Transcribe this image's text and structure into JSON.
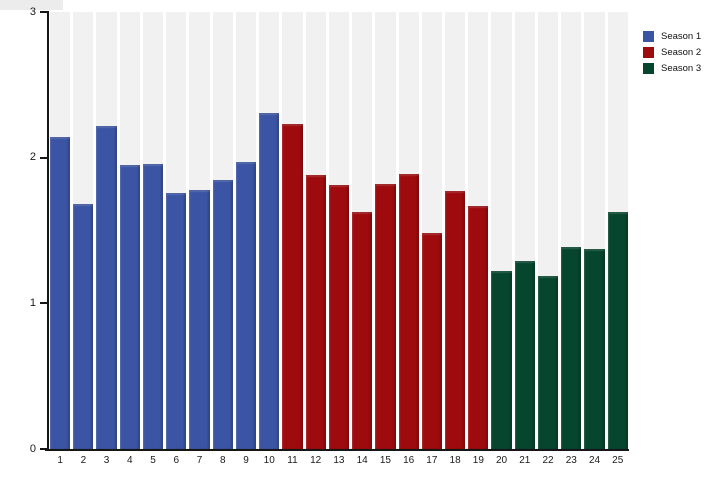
{
  "chart_data": {
    "type": "bar",
    "title": "",
    "xlabel": "",
    "ylabel": "",
    "ylim": [
      0,
      3
    ],
    "yticks": [
      0,
      1,
      2,
      3
    ],
    "grid": false,
    "legend_position": "top-right",
    "background_color": "#ffffff",
    "plot_column_color": "#f1f1f1",
    "axis_color": "#161616",
    "categories": [
      "1",
      "2",
      "3",
      "4",
      "5",
      "6",
      "7",
      "8",
      "9",
      "10",
      "11",
      "12",
      "13",
      "14",
      "15",
      "16",
      "17",
      "18",
      "19",
      "20",
      "21",
      "22",
      "23",
      "24",
      "25"
    ],
    "series": [
      {
        "name": "Season 1",
        "color": "#3B55A4",
        "categories": [
          "1",
          "2",
          "3",
          "4",
          "5",
          "6",
          "7",
          "8",
          "9",
          "10"
        ],
        "values": [
          2.14,
          1.68,
          2.22,
          1.95,
          1.96,
          1.76,
          1.78,
          1.85,
          1.97,
          2.31
        ]
      },
      {
        "name": "Season 2",
        "color": "#9E0B0E",
        "categories": [
          "11",
          "12",
          "13",
          "14",
          "15",
          "16",
          "17",
          "18",
          "19"
        ],
        "values": [
          2.23,
          1.88,
          1.81,
          1.63,
          1.82,
          1.89,
          1.48,
          1.77,
          1.67
        ]
      },
      {
        "name": "Season 3",
        "color": "#07462E",
        "categories": [
          "20",
          "21",
          "22",
          "23",
          "24",
          "25"
        ],
        "values": [
          1.22,
          1.29,
          1.19,
          1.39,
          1.37,
          1.63
        ]
      }
    ]
  }
}
